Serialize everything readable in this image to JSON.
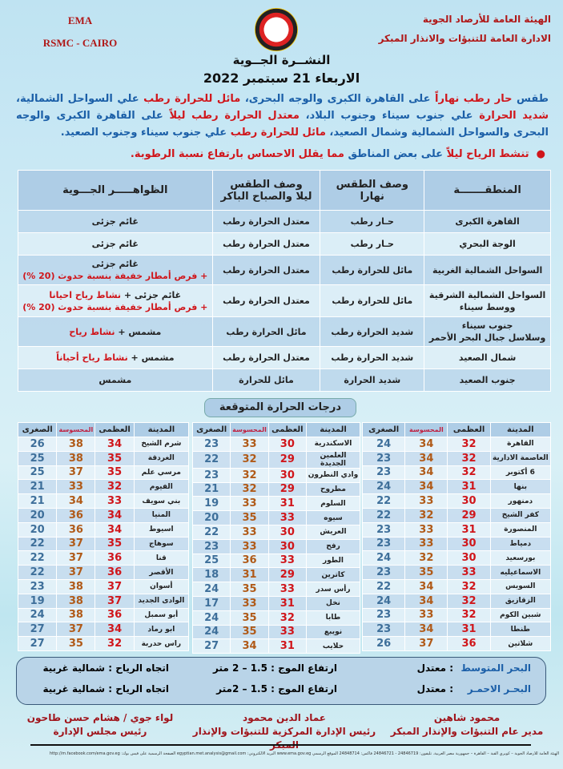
{
  "header": {
    "org_line1": "الهيئة العامة للأرصاد الجوية",
    "org_line2": "الادارة العامة للتنبؤات والانذار المبكر",
    "ema": "EMA",
    "rsmc": "RSMC - CAIRO",
    "title": "النشــرة الجــوية",
    "date": "الاربعاء 21 سبتمبر 2022"
  },
  "summary": [
    {
      "t": "طقس ",
      "red": false
    },
    {
      "t": "حار رطب نهاراً",
      "red": true
    },
    {
      "t": " على القاهرة الكبرى والوجه البحرى، ",
      "red": false
    },
    {
      "t": "مائل للحرارة رطب",
      "red": true
    },
    {
      "t": " علي السواحل الشمالية، ",
      "red": false
    },
    {
      "t": "شديد الحرارة",
      "red": true
    },
    {
      "t": " علي جنوب سيناء وجنوب البلاد، ",
      "red": false
    },
    {
      "t": "معتدل الحرارة رطب ليلاً",
      "red": true
    },
    {
      "t": " على القاهرة الكبرى والوجه البحرى والسواحل الشمالية وشمال الصعيد، ",
      "red": false
    },
    {
      "t": "مائل للحرارة رطب",
      "red": true
    },
    {
      "t": " علي جنوب سيناء وجنوب الصعيد.",
      "red": false
    }
  ],
  "bullet": [
    {
      "t": "تنشط الرياح ليلاً",
      "red": true
    },
    {
      "t": " على بعض المناطق ",
      "red": false
    },
    {
      "t": "مما يقلل الاحساس بارتفاع نسبة الرطوبة.",
      "red": true
    }
  ],
  "conditions": {
    "headers": [
      "المنطقـــــــة",
      "وصف الطقس نهارا",
      "وصف الطقس\nليلا والصباح الباكر",
      "الظواهـــــر الجـــوية"
    ],
    "rows": [
      {
        "region": "القاهرة الكبرى",
        "day": "حـار رطب",
        "night": "معتدل الحرارة رطب",
        "phen": [
          {
            "t": "غائم جزئى",
            "red": false
          }
        ]
      },
      {
        "region": "الوجة البحري",
        "day": "حـار رطب",
        "night": "معتدل الحرارة رطب",
        "phen": [
          {
            "t": "غائم جزئى",
            "red": false
          }
        ]
      },
      {
        "region": "السواحل الشمالية الغربية",
        "day": "مائل للحرارة رطب",
        "night": "معتدل الحرارة رطب",
        "phen": [
          {
            "t": "غائم جزئى",
            "red": false
          },
          {
            "t": "\n+ فرص أمطار خفيفة بنسبة حدوث (20 %)",
            "red": true
          }
        ]
      },
      {
        "region": "السواحل الشمالية الشرقية\nووسط سيناء",
        "day": "مائل للحرارة رطب",
        "night": "معتدل الحرارة رطب",
        "phen": [
          {
            "t": "غائم جزئى + ",
            "red": false
          },
          {
            "t": "نشاط رياح احيانا",
            "red": true
          },
          {
            "t": "\n+ فرص أمطار خفيفة بنسبة حدوث (20 %)",
            "red": true
          }
        ]
      },
      {
        "region": "جنوب سيناء\nوسلاسل جبال البحر الأحمر",
        "day": "شديد الحرارة رطب",
        "night": "مائل الحرارة رطب",
        "phen": [
          {
            "t": "مشمس + ",
            "red": false
          },
          {
            "t": "نشاط رياح",
            "red": true
          }
        ]
      },
      {
        "region": "شمال الصعيد",
        "day": "شديد الحرارة رطب",
        "night": "معتدل الحرارة رطب",
        "phen": [
          {
            "t": "مشمس + ",
            "red": false
          },
          {
            "t": "نشاط رياح أحياناً",
            "red": true
          }
        ]
      },
      {
        "region": "جنوب الصعيد",
        "day": "شديد الحرارة",
        "night": "مائل للحرارة",
        "phen": [
          {
            "t": "مشمس",
            "red": false
          }
        ]
      }
    ]
  },
  "temps": {
    "title": "درجات الحرارة المتوقعة",
    "headers": [
      "المدينة",
      "العظمى",
      "المحسوسة",
      "الصغرى"
    ],
    "tables": [
      [
        [
          "القاهرة",
          32,
          34,
          24
        ],
        [
          "العاصمة الادارية",
          32,
          34,
          23
        ],
        [
          "6 أكتوبر",
          32,
          34,
          23
        ],
        [
          "بنها",
          31,
          34,
          24
        ],
        [
          "دمنهور",
          30,
          33,
          22
        ],
        [
          "كفر الشيخ",
          29,
          32,
          22
        ],
        [
          "المنصورة",
          31,
          33,
          23
        ],
        [
          "دمياط",
          30,
          33,
          23
        ],
        [
          "بورسعيد",
          30,
          32,
          24
        ],
        [
          "الاسماعيليه",
          33,
          35,
          23
        ],
        [
          "السويس",
          32,
          34,
          22
        ],
        [
          "الزقازيق",
          32,
          34,
          24
        ],
        [
          "شبين الكوم",
          32,
          33,
          23
        ],
        [
          "طنطا",
          31,
          34,
          23
        ],
        [
          "شلاتين",
          36,
          37,
          26
        ]
      ],
      [
        [
          "الاسكندرية",
          30,
          33,
          23
        ],
        [
          "العلمين الجديدة",
          29,
          32,
          22
        ],
        [
          "وادي النطرون",
          30,
          32,
          23
        ],
        [
          "مطروح",
          29,
          32,
          21
        ],
        [
          "السلوم",
          31,
          33,
          19
        ],
        [
          "سيوه",
          33,
          35,
          20
        ],
        [
          "العريش",
          30,
          33,
          22
        ],
        [
          "رفح",
          30,
          33,
          23
        ],
        [
          "الطور",
          33,
          36,
          25
        ],
        [
          "كاترين",
          29,
          31,
          18
        ],
        [
          "رأس سدر",
          33,
          35,
          24
        ],
        [
          "نخل",
          31,
          33,
          17
        ],
        [
          "طابا",
          32,
          35,
          24
        ],
        [
          "نويبع",
          33,
          35,
          24
        ],
        [
          "حلايب",
          31,
          34,
          27
        ]
      ],
      [
        [
          "شرم الشيخ",
          34,
          38,
          26
        ],
        [
          "الغردقة",
          35,
          38,
          25
        ],
        [
          "مرسي علم",
          35,
          37,
          25
        ],
        [
          "الفيوم",
          32,
          33,
          21
        ],
        [
          "بني سويف",
          33,
          34,
          21
        ],
        [
          "المنيا",
          34,
          36,
          20
        ],
        [
          "اسيوط",
          34,
          36,
          20
        ],
        [
          "سوهاج",
          35,
          37,
          22
        ],
        [
          "قنا",
          36,
          37,
          22
        ],
        [
          "الأقصر",
          36,
          37,
          22
        ],
        [
          "أسوان",
          37,
          38,
          23
        ],
        [
          "الوادى الجديد",
          37,
          38,
          19
        ],
        [
          "أبو سمبل",
          36,
          38,
          24
        ],
        [
          "ابو رماد",
          34,
          37,
          27
        ],
        [
          "راس حدربة",
          32,
          35,
          27
        ]
      ]
    ]
  },
  "sea": [
    {
      "name": "البحر المتوسط",
      "state": ":  معتدل",
      "wave": "ارتفاع الموج : 1.5 – 2 متر",
      "wind": "اتجاه الرياح : شمالية غربية"
    },
    {
      "name": "البحـر الاحمـر",
      "state": ":  معتدل",
      "wave": "ارتفاع الموج : 1.5 – 2متر",
      "wind": "اتجاه الرياح : شمالية غربية"
    }
  ],
  "signatures": [
    {
      "name": "محمود شاهين",
      "title": "مدير عام التنبؤات والإنذار المبكر"
    },
    {
      "name": "عماد الدين محمود",
      "title": "رئيس الإدارة المركزية للتنبؤات والإنذار المبكر"
    },
    {
      "name": "لواء جوي / هشام حسن طاحون",
      "title": "رئيس مجلس الإدارة"
    }
  ],
  "footer": "الهيئة العامة للأرصاد الجوية – كوبري القبة – القاهرة – جمهورية مصر العربية. تليفون: 24846719 - 24846721 فاكس: 24848714 الموقع الرسمي www.ema.gov.eg البريد الالكتروني: egyptian.met.analysis@gmail.com الصفحة الرسمية على فيس بوك: http://m.facebook.com/ema.gov.eg",
  "colors": {
    "text_blue": "#1b5fa8",
    "accent_red": "#d0161b",
    "header_fill": "#aecde6"
  }
}
